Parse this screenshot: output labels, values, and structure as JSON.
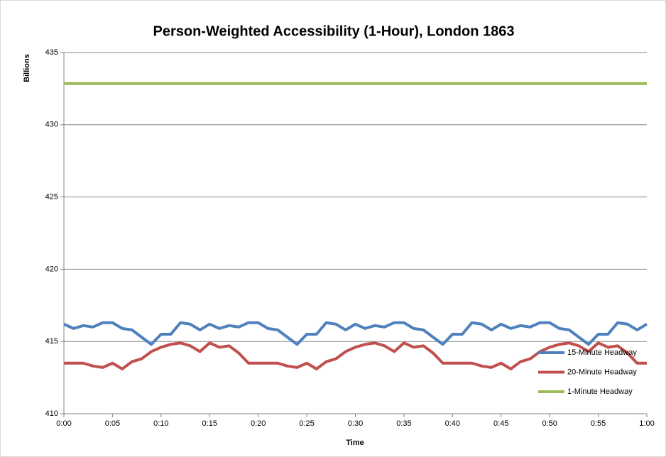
{
  "chart_data": {
    "type": "line",
    "title": "Person-Weighted Accessibility (1-Hour), London 1863",
    "x_label": "Time",
    "y_label": "Billions",
    "x": [
      0,
      1,
      2,
      3,
      4,
      5,
      6,
      7,
      8,
      9,
      10,
      11,
      12,
      13,
      14,
      15,
      16,
      17,
      18,
      19,
      20,
      21,
      22,
      23,
      24,
      25,
      26,
      27,
      28,
      29,
      30,
      31,
      32,
      33,
      34,
      35,
      36,
      37,
      38,
      39,
      40,
      41,
      42,
      43,
      44,
      45,
      46,
      47,
      48,
      49,
      50,
      51,
      52,
      53,
      54,
      55,
      56,
      57,
      58,
      59,
      60
    ],
    "xlim": [
      0,
      60
    ],
    "xticks": [
      {
        "value": 0,
        "label": "0:00"
      },
      {
        "value": 5,
        "label": "0:05"
      },
      {
        "value": 10,
        "label": "0:10"
      },
      {
        "value": 15,
        "label": "0:15"
      },
      {
        "value": 20,
        "label": "0:20"
      },
      {
        "value": 25,
        "label": "0:25"
      },
      {
        "value": 30,
        "label": "0:30"
      },
      {
        "value": 35,
        "label": "0:35"
      },
      {
        "value": 40,
        "label": "0:40"
      },
      {
        "value": 45,
        "label": "0:45"
      },
      {
        "value": 50,
        "label": "0:50"
      },
      {
        "value": 55,
        "label": "0:55"
      },
      {
        "value": 60,
        "label": "1:00"
      }
    ],
    "ylim": [
      410,
      435
    ],
    "yticks": [
      410,
      415,
      420,
      425,
      430,
      435
    ],
    "grid": true,
    "legend": "lower right",
    "series": [
      {
        "name": "15-Minute Headway",
        "color": "#4f81bd",
        "values": [
          416.2,
          415.9,
          416.1,
          416.0,
          416.3,
          416.3,
          415.9,
          415.8,
          415.3,
          414.8,
          415.5,
          415.5,
          416.3,
          416.2,
          415.8,
          416.2,
          415.9,
          416.1,
          416.0,
          416.3,
          416.3,
          415.9,
          415.8,
          415.3,
          414.8,
          415.5,
          415.5,
          416.3,
          416.2,
          415.8,
          416.2,
          415.9,
          416.1,
          416.0,
          416.3,
          416.3,
          415.9,
          415.8,
          415.3,
          414.8,
          415.5,
          415.5,
          416.3,
          416.2,
          415.8,
          416.2,
          415.9,
          416.1,
          416.0,
          416.3,
          416.3,
          415.9,
          415.8,
          415.3,
          414.8,
          415.5,
          415.5,
          416.3,
          416.2,
          415.8,
          416.2
        ]
      },
      {
        "name": "20-Minute Headway",
        "color": "#c0504d",
        "values": [
          413.5,
          413.5,
          413.5,
          413.3,
          413.2,
          413.5,
          413.1,
          413.6,
          413.8,
          414.3,
          414.6,
          414.8,
          414.9,
          414.7,
          414.3,
          414.9,
          414.6,
          414.7,
          414.2,
          413.5,
          413.5,
          413.5,
          413.5,
          413.3,
          413.2,
          413.5,
          413.1,
          413.6,
          413.8,
          414.3,
          414.6,
          414.8,
          414.9,
          414.7,
          414.3,
          414.9,
          414.6,
          414.7,
          414.2,
          413.5,
          413.5,
          413.5,
          413.5,
          413.3,
          413.2,
          413.5,
          413.1,
          413.6,
          413.8,
          414.3,
          414.6,
          414.8,
          414.9,
          414.7,
          414.3,
          414.9,
          414.6,
          414.7,
          414.2,
          413.5,
          413.5
        ]
      },
      {
        "name": "1-Minute Headway",
        "color": "#9bbb59",
        "values": [
          432.85,
          432.85,
          432.85,
          432.85,
          432.85,
          432.85,
          432.85,
          432.85,
          432.85,
          432.85,
          432.85,
          432.85,
          432.85,
          432.85,
          432.85,
          432.85,
          432.85,
          432.85,
          432.85,
          432.85,
          432.85,
          432.85,
          432.85,
          432.85,
          432.85,
          432.85,
          432.85,
          432.85,
          432.85,
          432.85,
          432.85,
          432.85,
          432.85,
          432.85,
          432.85,
          432.85,
          432.85,
          432.85,
          432.85,
          432.85,
          432.85,
          432.85,
          432.85,
          432.85,
          432.85,
          432.85,
          432.85,
          432.85,
          432.85,
          432.85,
          432.85,
          432.85,
          432.85,
          432.85,
          432.85,
          432.85,
          432.85,
          432.85,
          432.85,
          432.85,
          432.85
        ]
      }
    ]
  }
}
